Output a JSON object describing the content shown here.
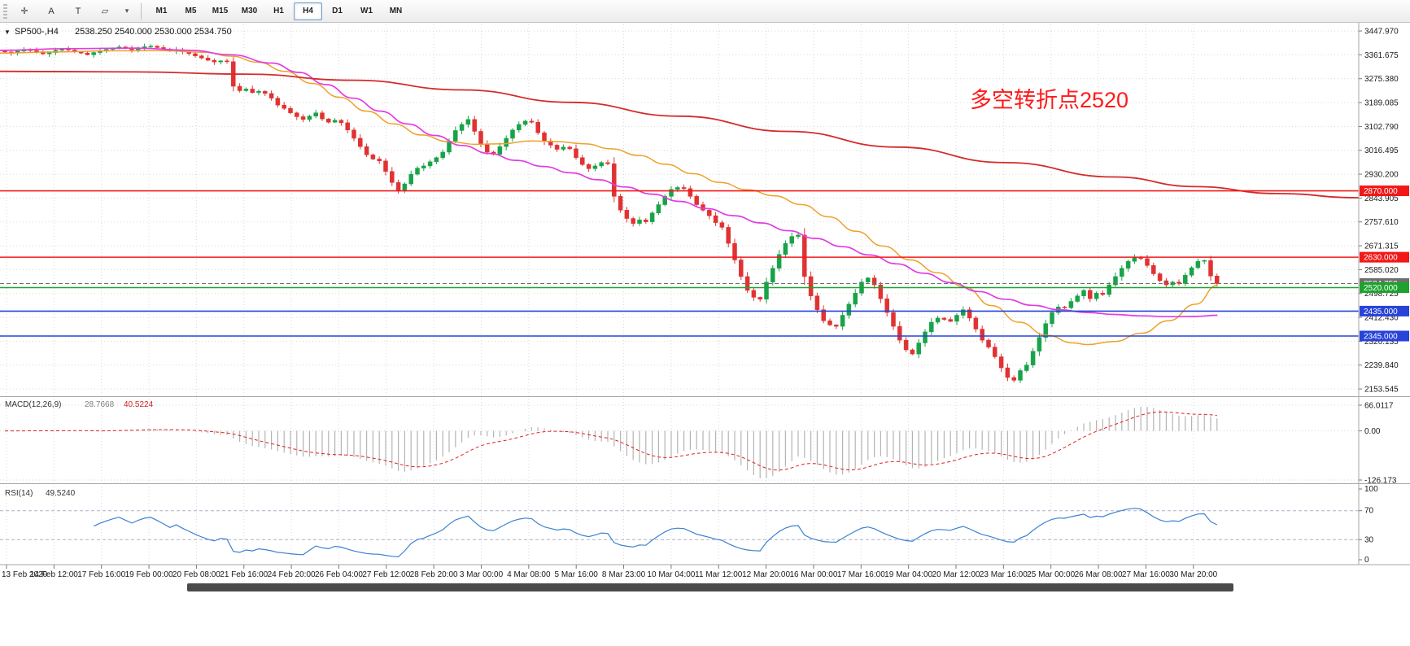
{
  "toolbar": {
    "tools": [
      {
        "name": "crosshair-icon",
        "glyph": "✛"
      },
      {
        "name": "text-label-icon",
        "glyph": "A"
      },
      {
        "name": "text-box-icon",
        "glyph": "T"
      },
      {
        "name": "shapes-icon",
        "glyph": "▱"
      },
      {
        "name": "dropdown-caret-icon",
        "glyph": "▾"
      }
    ],
    "timeframes": [
      {
        "label": "M1",
        "active": false
      },
      {
        "label": "M5",
        "active": false
      },
      {
        "label": "M15",
        "active": false
      },
      {
        "label": "M30",
        "active": false
      },
      {
        "label": "H1",
        "active": false
      },
      {
        "label": "H4",
        "active": true
      },
      {
        "label": "D1",
        "active": false
      },
      {
        "label": "W1",
        "active": false
      },
      {
        "label": "MN",
        "active": false
      }
    ]
  },
  "chart": {
    "collapse_icon": "▼",
    "symbol_title": "SP500-,H4",
    "ohlc_text": "2538.250 2540.000 2530.000 2534.750",
    "annotation": {
      "text": "多空转折点2520",
      "color": "#ff1a1a"
    },
    "view": {
      "price_top": 3471.7,
      "price_bottom": 2127.3
    },
    "up_color": "#18a348",
    "down_color": "#e03232",
    "price_axis_labels": [
      "3447.970",
      "3361.675",
      "3275.380",
      "3189.085",
      "3102.790",
      "3016.495",
      "2930.200",
      "2843.905",
      "2757.610",
      "2671.315",
      "2585.020",
      "2498.725",
      "2412.430",
      "2326.135",
      "2239.840",
      "2153.545"
    ],
    "time_axis_labels": [
      "13 Feb 2020",
      "14 Feb 12:00",
      "17 Feb 16:00",
      "19 Feb 00:00",
      "20 Feb 08:00",
      "21 Feb 16:00",
      "24 Feb 20:00",
      "26 Feb 04:00",
      "27 Feb 12:00",
      "28 Feb 20:00",
      "3 Mar 00:00",
      "4 Mar 08:00",
      "5 Mar 16:00",
      "8 Mar 23:00",
      "10 Mar 04:00",
      "11 Mar 12:00",
      "12 Mar 20:00",
      "16 Mar 00:00",
      "17 Mar 16:00",
      "19 Mar 04:00",
      "20 Mar 12:00",
      "23 Mar 16:00",
      "25 Mar 00:00",
      "26 Mar 08:00",
      "27 Mar 16:00",
      "30 Mar 20:00"
    ],
    "horizontal_lines": [
      {
        "price": 2870,
        "label": "2870.000",
        "color": "#f21818",
        "style": "solid"
      },
      {
        "price": 2630,
        "label": "2630.000",
        "color": "#f21818",
        "style": "solid"
      },
      {
        "price": 2534.75,
        "label": "2534.750",
        "color": "#6e6e6e",
        "style": "dash",
        "role": "current-price"
      },
      {
        "price": 2520,
        "label": "2520.000",
        "color": "#1da32d",
        "style": "solid"
      },
      {
        "price": 2435,
        "label": "2435.000",
        "color": "#2743d9",
        "style": "solid"
      },
      {
        "price": 2345,
        "label": "2345.000",
        "color": "#2743d9",
        "style": "solid"
      }
    ],
    "moving_averages": [
      {
        "name": "fast-ma",
        "color": "#eda128",
        "width": 1.5,
        "points": [
          [
            0,
            3368
          ],
          [
            0.04,
            3372
          ],
          [
            0.08,
            3376
          ],
          [
            0.12,
            3377
          ],
          [
            0.15,
            3371
          ],
          [
            0.17,
            3357
          ],
          [
            0.19,
            3335
          ],
          [
            0.21,
            3302
          ],
          [
            0.23,
            3258
          ],
          [
            0.25,
            3208
          ],
          [
            0.27,
            3158
          ],
          [
            0.29,
            3112
          ],
          [
            0.31,
            3072
          ],
          [
            0.33,
            3048
          ],
          [
            0.35,
            3038
          ],
          [
            0.37,
            3040
          ],
          [
            0.39,
            3050
          ],
          [
            0.41,
            3048
          ],
          [
            0.43,
            3040
          ],
          [
            0.45,
            3022
          ],
          [
            0.47,
            2998
          ],
          [
            0.49,
            2966
          ],
          [
            0.51,
            2932
          ],
          [
            0.53,
            2900
          ],
          [
            0.55,
            2874
          ],
          [
            0.57,
            2852
          ],
          [
            0.59,
            2820
          ],
          [
            0.61,
            2776
          ],
          [
            0.63,
            2724
          ],
          [
            0.65,
            2670
          ],
          [
            0.67,
            2620
          ],
          [
            0.69,
            2574
          ],
          [
            0.71,
            2522
          ],
          [
            0.73,
            2455
          ],
          [
            0.75,
            2395
          ],
          [
            0.77,
            2348
          ],
          [
            0.79,
            2320
          ],
          [
            0.8,
            2314
          ],
          [
            0.82,
            2325
          ],
          [
            0.84,
            2355
          ],
          [
            0.86,
            2400
          ],
          [
            0.88,
            2460
          ],
          [
            0.896,
            2528
          ]
        ]
      },
      {
        "name": "mid-ma",
        "color": "#e23ce2",
        "width": 1.7,
        "points": [
          [
            0,
            3378
          ],
          [
            0.05,
            3384
          ],
          [
            0.1,
            3386
          ],
          [
            0.14,
            3378
          ],
          [
            0.17,
            3362
          ],
          [
            0.2,
            3332
          ],
          [
            0.22,
            3298
          ],
          [
            0.24,
            3254
          ],
          [
            0.26,
            3205
          ],
          [
            0.28,
            3158
          ],
          [
            0.3,
            3112
          ],
          [
            0.32,
            3070
          ],
          [
            0.34,
            3034
          ],
          [
            0.36,
            3005
          ],
          [
            0.38,
            2980
          ],
          [
            0.4,
            2958
          ],
          [
            0.42,
            2935
          ],
          [
            0.44,
            2910
          ],
          [
            0.46,
            2884
          ],
          [
            0.48,
            2858
          ],
          [
            0.5,
            2832
          ],
          [
            0.52,
            2806
          ],
          [
            0.54,
            2780
          ],
          [
            0.56,
            2754
          ],
          [
            0.58,
            2726
          ],
          [
            0.6,
            2698
          ],
          [
            0.62,
            2668
          ],
          [
            0.64,
            2638
          ],
          [
            0.66,
            2606
          ],
          [
            0.68,
            2572
          ],
          [
            0.7,
            2538
          ],
          [
            0.72,
            2506
          ],
          [
            0.74,
            2478
          ],
          [
            0.76,
            2456
          ],
          [
            0.78,
            2440
          ],
          [
            0.8,
            2430
          ],
          [
            0.82,
            2423
          ],
          [
            0.84,
            2418
          ],
          [
            0.86,
            2415
          ],
          [
            0.88,
            2416
          ],
          [
            0.896,
            2420
          ]
        ]
      },
      {
        "name": "slow-ma",
        "color": "#d42b2b",
        "width": 1.8,
        "points": [
          [
            0,
            3302
          ],
          [
            0.1,
            3300
          ],
          [
            0.18,
            3292
          ],
          [
            0.26,
            3270
          ],
          [
            0.34,
            3235
          ],
          [
            0.42,
            3190
          ],
          [
            0.5,
            3140
          ],
          [
            0.58,
            3085
          ],
          [
            0.66,
            3028
          ],
          [
            0.74,
            2972
          ],
          [
            0.82,
            2920
          ],
          [
            0.88,
            2885
          ],
          [
            0.94,
            2860
          ],
          [
            1,
            2845
          ]
        ]
      }
    ],
    "candles_close": [
      3372,
      3368,
      3375,
      3380,
      3377,
      3371,
      3365,
      3370,
      3378,
      3382,
      3379,
      3373,
      3368,
      3362,
      3370,
      3376,
      3381,
      3386,
      3390,
      3385,
      3380,
      3386,
      3391,
      3393,
      3388,
      3382,
      3375,
      3380,
      3373,
      3366,
      3358,
      3350,
      3342,
      3336,
      3340,
      3337,
      3248,
      3232,
      3238,
      3225,
      3230,
      3222,
      3205,
      3180,
      3168,
      3152,
      3138,
      3128,
      3140,
      3152,
      3130,
      3118,
      3125,
      3116,
      3090,
      3060,
      3030,
      3000,
      2985,
      2978,
      2940,
      2900,
      2870,
      2895,
      2930,
      2952,
      2960,
      2975,
      2990,
      3010,
      3050,
      3088,
      3110,
      3128,
      3085,
      3040,
      3010,
      3002,
      3030,
      3060,
      3090,
      3110,
      3122,
      3118,
      3080,
      3050,
      3035,
      3020,
      3028,
      3022,
      2990,
      2965,
      2950,
      2960,
      2972,
      2968,
      2850,
      2800,
      2770,
      2752,
      2765,
      2758,
      2790,
      2820,
      2850,
      2875,
      2882,
      2878,
      2850,
      2820,
      2800,
      2780,
      2755,
      2738,
      2680,
      2620,
      2560,
      2510,
      2485,
      2478,
      2540,
      2590,
      2640,
      2680,
      2705,
      2710,
      2560,
      2490,
      2440,
      2400,
      2385,
      2380,
      2420,
      2460,
      2500,
      2540,
      2555,
      2530,
      2480,
      2430,
      2380,
      2330,
      2295,
      2280,
      2320,
      2360,
      2395,
      2410,
      2405,
      2398,
      2420,
      2440,
      2410,
      2370,
      2330,
      2305,
      2270,
      2230,
      2195,
      2185,
      2220,
      2240,
      2290,
      2340,
      2390,
      2430,
      2450,
      2447,
      2470,
      2490,
      2510,
      2480,
      2500,
      2495,
      2530,
      2560,
      2590,
      2615,
      2630,
      2625,
      2600,
      2570,
      2545,
      2530,
      2540,
      2535,
      2565,
      2592,
      2615,
      2618,
      2562,
      2534.75
    ]
  },
  "macd": {
    "name": "MACD(12,26,9)",
    "value_main": "28.7668",
    "value_signal": "40.5224",
    "axis_labels": [
      "66.0117",
      "0.00",
      "-126.173"
    ],
    "histogram_color": "#b4b4b4",
    "signal_color": "#e02020"
  },
  "rsi": {
    "name": "RSI(14)",
    "value": "49.5240",
    "axis_labels": [
      "100",
      "70",
      "30",
      "0"
    ],
    "levels": [
      70,
      30
    ],
    "line_color": "#3b82d0"
  },
  "chart_data": {
    "type": "candlestick-with-indicators",
    "symbol": "SP500-",
    "timeframe": "H4",
    "last_bar": {
      "open": 2538.25,
      "high": 2540.0,
      "low": 2530.0,
      "close": 2534.75
    },
    "y_axis_range": [
      2153.545,
      3447.97
    ],
    "key_levels": [
      2870,
      2630,
      2520,
      2435,
      2345
    ],
    "indicators": [
      {
        "name": "MACD",
        "params": [
          12,
          26,
          9
        ],
        "current": [
          28.7668,
          40.5224
        ],
        "range": [
          -126.173,
          66.0117
        ]
      },
      {
        "name": "RSI",
        "params": [
          14
        ],
        "current": 49.524,
        "levels": [
          70,
          30
        ],
        "range": [
          0,
          100
        ]
      }
    ]
  }
}
